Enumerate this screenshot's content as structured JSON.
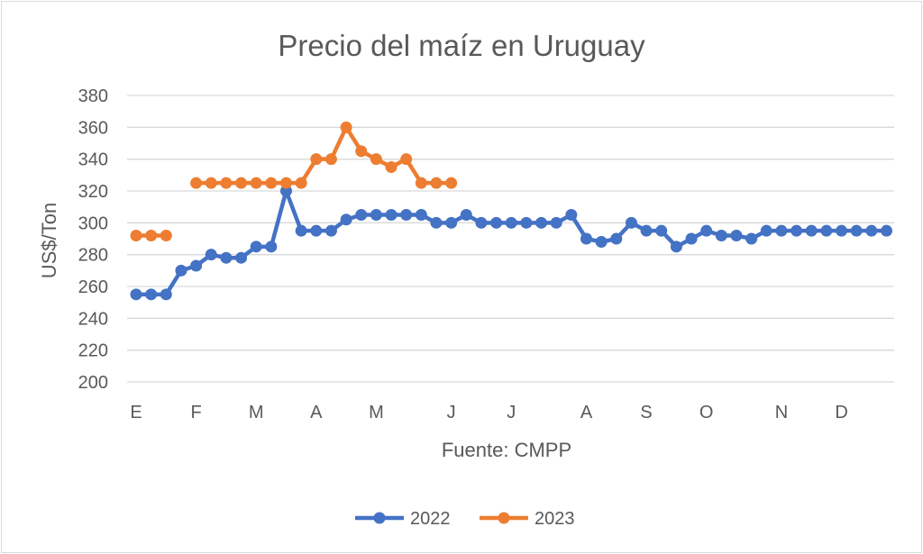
{
  "chart_data": {
    "type": "line",
    "title": "Precio del maíz en Uruguay",
    "xlabel": "Fuente: CMPP",
    "ylabel": "US$/Ton",
    "ylim": [
      200,
      380
    ],
    "yticks": [
      200,
      220,
      240,
      260,
      280,
      300,
      320,
      340,
      360,
      380
    ],
    "grid": true,
    "legend_position": "bottom",
    "month_labels": [
      {
        "label": "E",
        "index": 0
      },
      {
        "label": "F",
        "index": 4
      },
      {
        "label": "M",
        "index": 8
      },
      {
        "label": "A",
        "index": 12
      },
      {
        "label": "M",
        "index": 16
      },
      {
        "label": "J",
        "index": 21
      },
      {
        "label": "J",
        "index": 25
      },
      {
        "label": "A",
        "index": 30
      },
      {
        "label": "S",
        "index": 34
      },
      {
        "label": "O",
        "index": 38
      },
      {
        "label": "N",
        "index": 43
      },
      {
        "label": "D",
        "index": 47
      }
    ],
    "series": [
      {
        "name": "2022",
        "color": "#4472c4",
        "values": [
          255,
          255,
          255,
          270,
          273,
          280,
          278,
          278,
          285,
          285,
          320,
          295,
          295,
          295,
          302,
          305,
          305,
          305,
          305,
          305,
          300,
          300,
          305,
          300,
          300,
          300,
          300,
          300,
          300,
          305,
          290,
          288,
          290,
          300,
          295,
          295,
          285,
          290,
          295,
          292,
          292,
          290,
          295,
          295,
          295,
          295,
          295,
          295,
          295,
          295,
          295
        ]
      },
      {
        "name": "2023",
        "color": "#ed7d31",
        "values": [
          292,
          292,
          292,
          null,
          325,
          325,
          325,
          325,
          325,
          325,
          325,
          325,
          340,
          340,
          360,
          345,
          340,
          335,
          340,
          325,
          325,
          325
        ]
      }
    ]
  }
}
